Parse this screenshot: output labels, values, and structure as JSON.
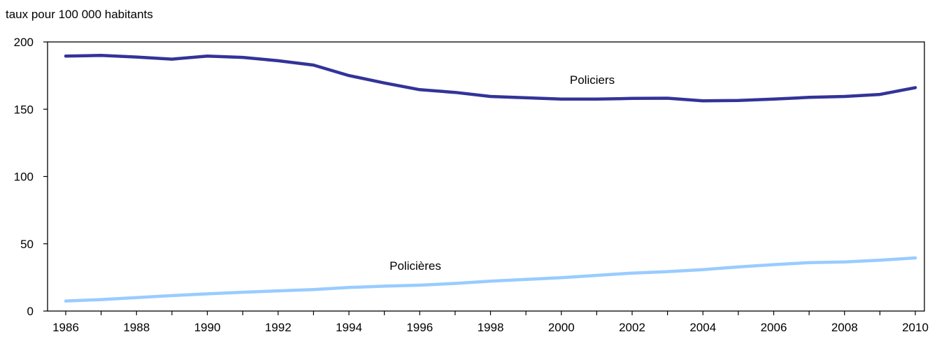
{
  "chart_data": {
    "type": "line",
    "ylabel": "taux pour 100 000 habitants",
    "ylim": [
      0,
      200
    ],
    "yticks": [
      "0",
      "50",
      "100",
      "150",
      "200"
    ],
    "x": [
      1986,
      1987,
      1988,
      1989,
      1990,
      1991,
      1992,
      1993,
      1994,
      1995,
      1996,
      1997,
      1998,
      1999,
      2000,
      2001,
      2002,
      2003,
      2004,
      2005,
      2006,
      2007,
      2008,
      2009,
      2010
    ],
    "xtick_labels": [
      "1986",
      "1988",
      "1990",
      "1992",
      "1994",
      "1996",
      "1998",
      "2000",
      "2002",
      "2004",
      "2006",
      "2008",
      "2010"
    ],
    "grid": false,
    "series": [
      {
        "name": "Policiers",
        "color": "#333399",
        "values": [
          189.5,
          190.0,
          188.8,
          187.2,
          189.5,
          188.5,
          186.0,
          182.8,
          175.0,
          169.5,
          164.5,
          162.5,
          159.5,
          158.5,
          157.5,
          157.5,
          158.0,
          158.2,
          156.2,
          156.5,
          157.5,
          158.8,
          159.5,
          161.0,
          166.0
        ]
      },
      {
        "name": "Policières",
        "color": "#99ccff",
        "values": [
          7.5,
          8.5,
          10.0,
          11.5,
          12.8,
          14.0,
          15.0,
          16.0,
          17.5,
          18.5,
          19.2,
          20.5,
          22.2,
          23.5,
          24.8,
          26.5,
          28.2,
          29.3,
          30.8,
          32.8,
          34.5,
          36.0,
          36.5,
          37.8,
          39.5
        ]
      }
    ]
  }
}
